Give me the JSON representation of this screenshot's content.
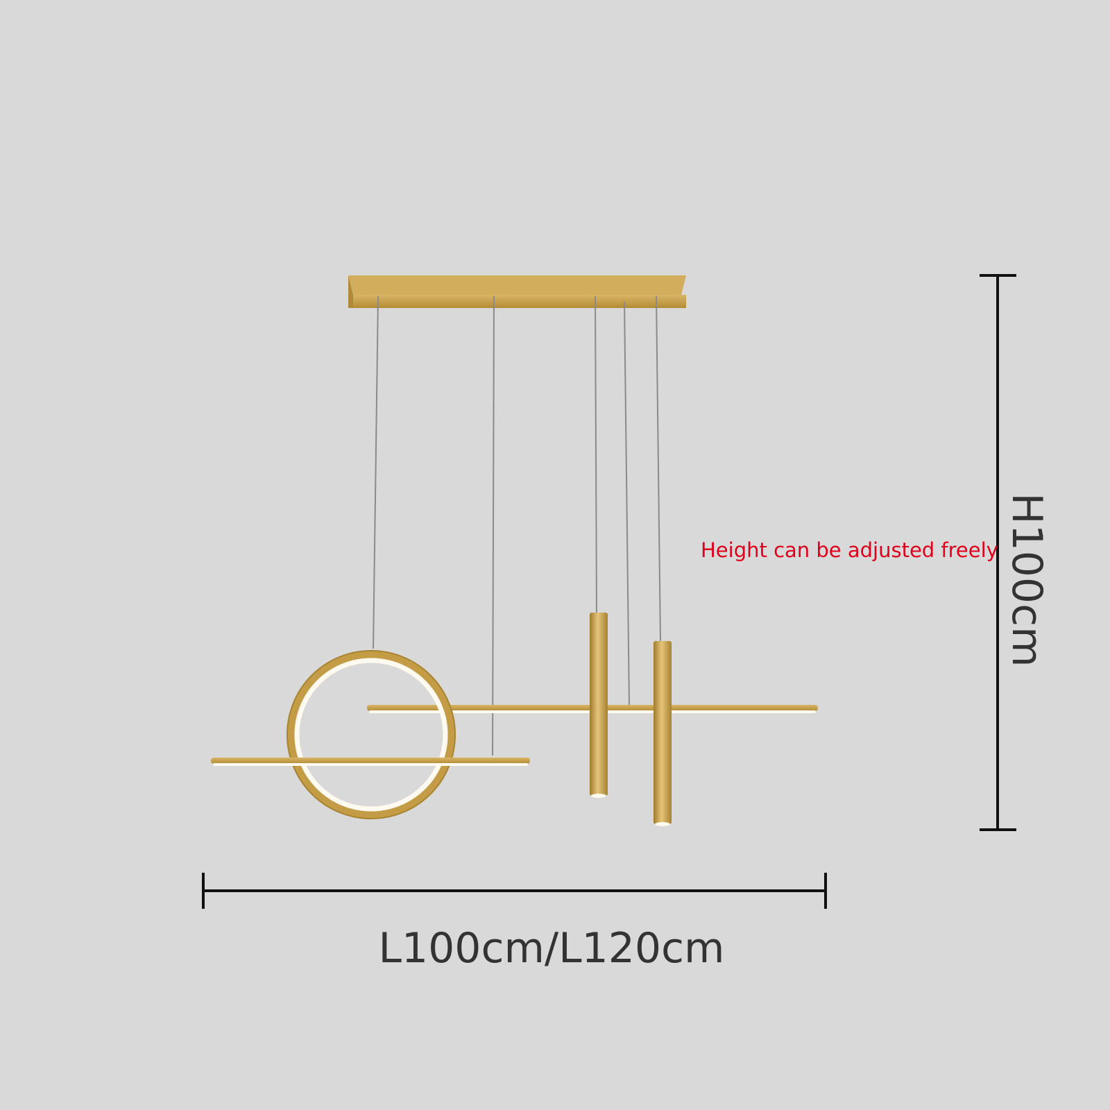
{
  "annotations": {
    "note": "Height can be adjusted freely",
    "width_label": "L100cm/L120cm",
    "height_label": "H100cm"
  },
  "colors": {
    "background": "#d9d9d9",
    "gold": "#c9a24a",
    "gold_dark": "#a8832f",
    "led": "#fffaf0",
    "wire": "#8a8a8a",
    "dimension_line": "#111111",
    "note_text": "#e0001b",
    "label_text": "#333333"
  }
}
